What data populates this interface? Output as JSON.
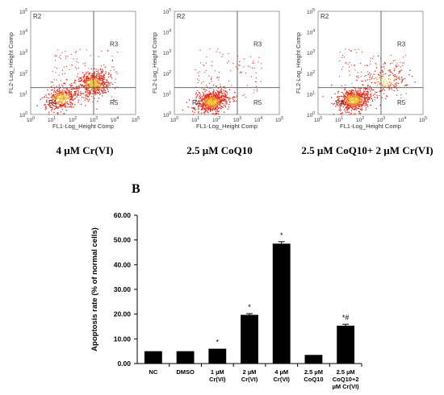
{
  "panel_a": {
    "plots": [
      {
        "caption": "4 µM Cr(VI)",
        "xlabel": "FL1-Log_Height Comp",
        "ylabel": "FL2-Log_Height Comp",
        "regions": [
          "R2",
          "R3",
          "R4",
          "R5"
        ],
        "x_ticks": [
          "10^0",
          "10^1",
          "10^2",
          "10^3",
          "10^4",
          "10^5"
        ],
        "y_ticks": [
          "10^0",
          "10^1",
          "10^2",
          "10^3",
          "10^4",
          "10^5"
        ],
        "scatter_color": "#e8261b"
      },
      {
        "caption": "2.5 µM CoQ10",
        "xlabel": "FL1-Log_Height Comp",
        "ylabel": "FL2-Log_Height Comp",
        "regions": [
          "R2",
          "R3",
          "R4",
          "R5"
        ],
        "x_ticks": [
          "10^0",
          "10^1",
          "10^2",
          "10^3",
          "10^4",
          "10^5"
        ],
        "y_ticks": [
          "10^0",
          "10^1",
          "10^2",
          "10^3",
          "10^4",
          "10^5"
        ],
        "scatter_color": "#e8261b"
      },
      {
        "caption": "2.5 µM CoQ10+ 2 µM Cr(VI)",
        "xlabel": "FL1-Log_Height Comp",
        "ylabel": "FL2-Log_Height Comp",
        "regions": [
          "R2",
          "R3",
          "R4",
          "R5"
        ],
        "x_ticks": [
          "10^0",
          "10^1",
          "10^2",
          "10^3",
          "10^4",
          "10^5"
        ],
        "y_ticks": [
          "10^0",
          "10^1",
          "10^2",
          "10^3",
          "10^4",
          "10^5"
        ],
        "scatter_color": "#e8261b"
      }
    ]
  },
  "panel_b": {
    "letter": "B"
  },
  "chart_data": [
    {
      "type": "scatter",
      "title": "4 µM Cr(VI)",
      "xlabel": "FL1-Log_Height Comp",
      "ylabel": "FL2-Log_Height Comp",
      "xlim": [
        1,
        100000
      ],
      "ylim": [
        1,
        100000
      ],
      "log_scale": true,
      "regions": [
        "R2",
        "R3",
        "R4",
        "R5"
      ],
      "clusters": [
        {
          "region": "R4",
          "center": [
            30,
            6
          ]
        },
        {
          "region": "R3",
          "center": [
            1000,
            30
          ]
        }
      ]
    },
    {
      "type": "scatter",
      "title": "2.5 µM CoQ10",
      "xlabel": "FL1-Log_Height Comp",
      "ylabel": "FL2-Log_Height Comp",
      "xlim": [
        1,
        100000
      ],
      "ylim": [
        1,
        100000
      ],
      "log_scale": true,
      "regions": [
        "R2",
        "R3",
        "R4",
        "R5"
      ],
      "clusters": [
        {
          "region": "R4",
          "center": [
            60,
            4
          ]
        }
      ]
    },
    {
      "type": "scatter",
      "title": "2.5 µM CoQ10+ 2 µM Cr(VI)",
      "xlabel": "FL1-Log_Height Comp",
      "ylabel": "FL2-Log_Height Comp",
      "xlim": [
        1,
        100000
      ],
      "ylim": [
        1,
        100000
      ],
      "log_scale": true,
      "regions": [
        "R2",
        "R3",
        "R4",
        "R5"
      ],
      "clusters": [
        {
          "region": "R4",
          "center": [
            50,
            5
          ]
        },
        {
          "region": "R3",
          "center": [
            1500,
            40
          ]
        }
      ]
    },
    {
      "type": "bar",
      "ylabel": "Apoptosis rate (% of normal cells)",
      "ylim": [
        0,
        60
      ],
      "yticks": [
        "0.00",
        "10.00",
        "20.00",
        "30.00",
        "40.00",
        "50.00",
        "60.00"
      ],
      "categories": [
        [
          "NC"
        ],
        [
          "DMSO"
        ],
        [
          "1 µM",
          "Cr(VI)"
        ],
        [
          "2 µM",
          "Cr(VI)"
        ],
        [
          "4 µM",
          "Cr(VI)"
        ],
        [
          "2.5 µM",
          "CoQ10"
        ],
        [
          "2.5 µM",
          "CoQ10+2",
          "µM Cr(VI)"
        ]
      ],
      "values": [
        5.0,
        5.0,
        6.0,
        19.7,
        48.5,
        3.5,
        15.3
      ],
      "errors": [
        0,
        0,
        0,
        0.5,
        0.8,
        0,
        0.6
      ],
      "annotations": [
        "",
        "",
        "*",
        "*",
        "*",
        "",
        "*#"
      ],
      "bar_color": "#000000"
    }
  ]
}
